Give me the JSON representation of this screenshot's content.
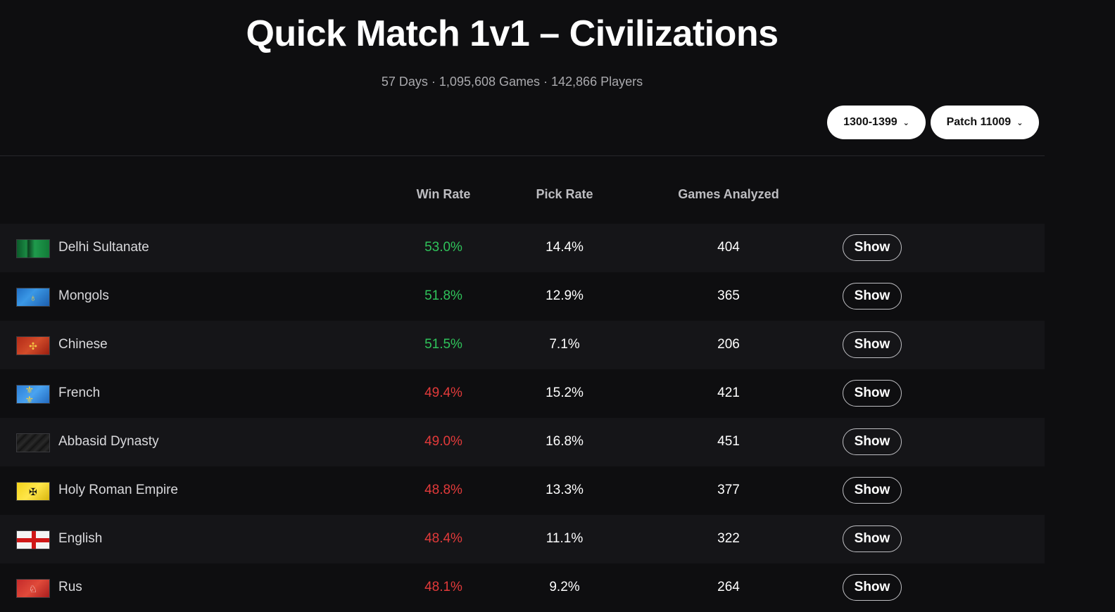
{
  "header": {
    "title": "Quick Match 1v1 – Civilizations",
    "subtitle": "57 Days · 1,095,608 Games · 142,866 Players"
  },
  "filters": {
    "elo_range": "1300-1399",
    "patch": "Patch 11009"
  },
  "columns": {
    "win_rate": "Win Rate",
    "pick_rate": "Pick Rate",
    "games": "Games Analyzed"
  },
  "colors": {
    "win_up": "#2fc35a",
    "win_down": "#e23a3a",
    "background": "#0e0e10"
  },
  "rows": [
    {
      "civ": "Delhi Sultanate",
      "flag": "delhi",
      "win_rate": "53.0%",
      "trend": "up",
      "pick_rate": "14.4%",
      "games": "404",
      "action": "Show"
    },
    {
      "civ": "Mongols",
      "flag": "mongols",
      "win_rate": "51.8%",
      "trend": "up",
      "pick_rate": "12.9%",
      "games": "365",
      "action": "Show"
    },
    {
      "civ": "Chinese",
      "flag": "chinese",
      "win_rate": "51.5%",
      "trend": "up",
      "pick_rate": "7.1%",
      "games": "206",
      "action": "Show"
    },
    {
      "civ": "French",
      "flag": "french",
      "win_rate": "49.4%",
      "trend": "down",
      "pick_rate": "15.2%",
      "games": "421",
      "action": "Show"
    },
    {
      "civ": "Abbasid Dynasty",
      "flag": "abbasid",
      "win_rate": "49.0%",
      "trend": "down",
      "pick_rate": "16.8%",
      "games": "451",
      "action": "Show"
    },
    {
      "civ": "Holy Roman Empire",
      "flag": "hre",
      "win_rate": "48.8%",
      "trend": "down",
      "pick_rate": "13.3%",
      "games": "377",
      "action": "Show"
    },
    {
      "civ": "English",
      "flag": "english",
      "win_rate": "48.4%",
      "trend": "down",
      "pick_rate": "11.1%",
      "games": "322",
      "action": "Show"
    },
    {
      "civ": "Rus",
      "flag": "rus",
      "win_rate": "48.1%",
      "trend": "down",
      "pick_rate": "9.2%",
      "games": "264",
      "action": "Show"
    }
  ]
}
